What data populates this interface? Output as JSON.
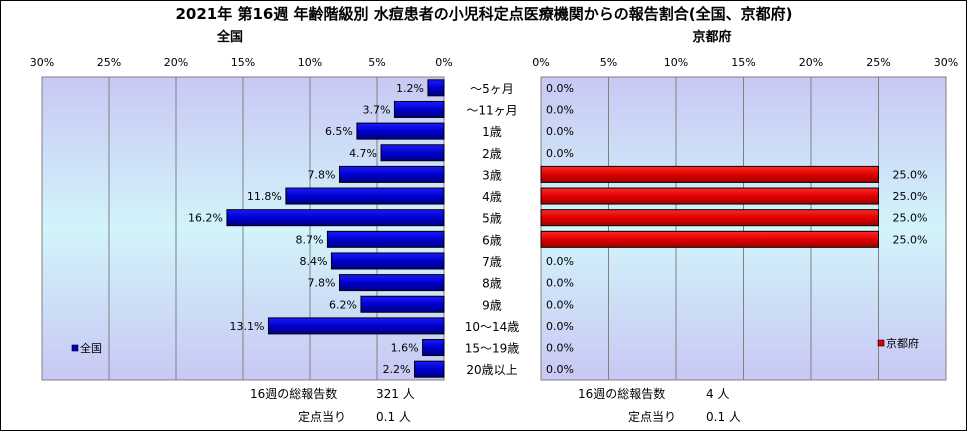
{
  "title": "2021年 第16週 年齢階級別 水痘患者の小児科定点医療機関からの報告割合(全国、京都府)",
  "age_groups": [
    "～5ヶ月",
    "～11ヶ月",
    "1歳",
    "2歳",
    "3歳",
    "4歳",
    "5歳",
    "6歳",
    "7歳",
    "8歳",
    "9歳",
    "10～14歳",
    "15～19歳",
    "20歳以上"
  ],
  "chart_data": [
    {
      "type": "bar",
      "orientation": "horizontal",
      "direction": "reversed",
      "title": "全国",
      "xlim": [
        0,
        30
      ],
      "xticks": [
        "0%",
        "5%",
        "10%",
        "15%",
        "20%",
        "25%",
        "30%"
      ],
      "grid": true,
      "legend_position": "bottom-left",
      "color": "#0000cc",
      "series": [
        {
          "name": "全国",
          "values": [
            1.2,
            3.7,
            6.5,
            4.7,
            7.8,
            11.8,
            16.2,
            8.7,
            8.4,
            7.8,
            6.2,
            13.1,
            1.6,
            2.2
          ],
          "labels": [
            "1.2%",
            "3.7%",
            "6.5%",
            "4.7%",
            "7.8%",
            "11.8%",
            "16.2%",
            "8.7%",
            "8.4%",
            "7.8%",
            "6.2%",
            "13.1%",
            "1.6%",
            "2.2%"
          ]
        }
      ]
    },
    {
      "type": "bar",
      "orientation": "horizontal",
      "title": "京都府",
      "xlim": [
        0,
        30
      ],
      "xticks": [
        "0%",
        "5%",
        "10%",
        "15%",
        "20%",
        "25%",
        "30%"
      ],
      "grid": true,
      "legend_position": "bottom-right",
      "color": "#dd0000",
      "series": [
        {
          "name": "京都府",
          "values": [
            0.0,
            0.0,
            0.0,
            0.0,
            25.0,
            25.0,
            25.0,
            25.0,
            0.0,
            0.0,
            0.0,
            0.0,
            0.0,
            0.0
          ],
          "labels": [
            "0.0%",
            "0.0%",
            "0.0%",
            "0.0%",
            "25.0%",
            "25.0%",
            "25.0%",
            "25.0%",
            "0.0%",
            "0.0%",
            "0.0%",
            "0.0%",
            "0.0%",
            "0.0%"
          ]
        }
      ]
    }
  ],
  "footer": {
    "national_total_label": "16週の総報告数",
    "national_total_value": "321 人",
    "national_per_label": "定点当り",
    "national_per_value": "0.1 人",
    "kyoto_total_label": "16週の総報告数",
    "kyoto_total_value": "4 人",
    "kyoto_per_label": "定点当り",
    "kyoto_per_value": "0.1 人"
  }
}
